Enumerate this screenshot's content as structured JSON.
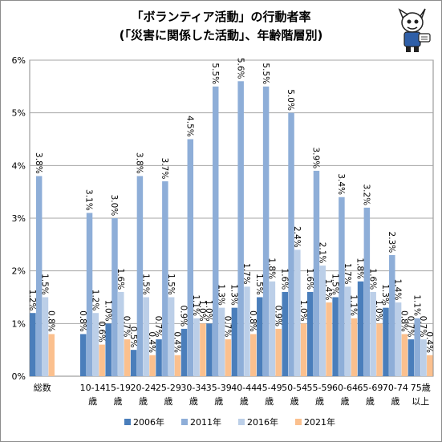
{
  "chart_data": {
    "type": "bar",
    "title": "「ボランティア活動」の行動者率",
    "subtitle": "(「災害に関係した活動」、年齢階層別)",
    "categories": [
      "総数",
      "",
      "10-14歳",
      "15-19歳",
      "20-24歳",
      "25-29歳",
      "30-34歳",
      "35-39歳",
      "40-44歳",
      "45-49歳",
      "50-54歳",
      "55-59歳",
      "60-64歳",
      "65-69歳",
      "70-74歳",
      "75歳以上"
    ],
    "category_lines": [
      [
        "総数"
      ],
      [],
      [
        "10-14",
        "歳"
      ],
      [
        "15-19",
        "歳"
      ],
      [
        "20-24",
        "歳"
      ],
      [
        "25-29",
        "歳"
      ],
      [
        "30-34",
        "歳"
      ],
      [
        "35-39",
        "歳"
      ],
      [
        "40-44",
        "歳"
      ],
      [
        "45-49",
        "歳"
      ],
      [
        "50-54",
        "歳"
      ],
      [
        "55-59",
        "歳"
      ],
      [
        "60-64",
        "歳"
      ],
      [
        "65-69",
        "歳"
      ],
      [
        "70-74",
        "歳"
      ],
      [
        "75歳",
        "以上"
      ]
    ],
    "series": [
      {
        "name": "2006年",
        "color": "#4a7ebb",
        "values": [
          1.2,
          null,
          0.8,
          1.0,
          0.5,
          0.7,
          0.9,
          1.0,
          1.3,
          1.5,
          1.6,
          1.6,
          1.5,
          1.8,
          1.3,
          0.7
        ]
      },
      {
        "name": "2011年",
        "color": "#8eaed8",
        "values": [
          3.8,
          null,
          3.1,
          3.0,
          3.8,
          3.7,
          4.5,
          5.5,
          5.6,
          5.5,
          5.0,
          3.9,
          3.4,
          3.2,
          2.3,
          1.1
        ]
      },
      {
        "name": "2016年",
        "color": "#bccfe8",
        "values": [
          1.5,
          null,
          1.2,
          1.6,
          1.5,
          1.5,
          1.1,
          1.3,
          1.7,
          1.8,
          2.4,
          2.1,
          1.7,
          1.6,
          1.4,
          0.7
        ]
      },
      {
        "name": "2021年",
        "color": "#fbc08e",
        "values": [
          0.8,
          null,
          0.6,
          0.7,
          0.4,
          0.4,
          1.0,
          0.7,
          0.8,
          0.9,
          1.0,
          1.4,
          1.1,
          1.0,
          0.8,
          0.4
        ]
      }
    ],
    "data_labels": [
      [
        "1.2%",
        null,
        "0.8%",
        "1.0%",
        "0.5%",
        "0.7%",
        "0.9%",
        "1.0%",
        "1.3%",
        "1.5%",
        "1.6%",
        "1.6%",
        "1.5%",
        "1.8%",
        "1.3%",
        "0.7%"
      ],
      [
        "3.8%",
        null,
        "3.1%",
        "3.0%",
        "3.8%",
        "3.7%",
        "4.5%",
        "5.5%",
        "5.6%",
        "5.5%",
        "5.0%",
        "3.9%",
        "3.4%",
        "3.2%",
        "2.3%",
        "1.1%"
      ],
      [
        "1.5%",
        null,
        "1.2%",
        "1.6%",
        "1.5%",
        "1.5%",
        "1.1%",
        "1.3%",
        "1.7%",
        "1.8%",
        "2.4%",
        "2.1%",
        "1.7%",
        "1.6%",
        "1.4%",
        "0.7%"
      ],
      [
        "0.8%",
        null,
        "0.6%",
        "0.7%",
        "0.4%",
        "0.4%",
        "1.0%",
        "0.7%",
        "0.8%",
        "0.9%",
        "1.0%",
        "1.4%",
        "1.1%",
        "1.0%",
        "0.8%",
        "0.4%"
      ]
    ],
    "yticks": [
      0,
      1,
      2,
      3,
      4,
      5,
      6
    ],
    "ytick_labels": [
      "0%",
      "1%",
      "2%",
      "3%",
      "4%",
      "5%",
      "6%"
    ],
    "ylim": [
      0,
      6
    ],
    "grid": true,
    "legend_position": "bottom"
  },
  "mascot_icon": "cartoon-mascot-icon"
}
